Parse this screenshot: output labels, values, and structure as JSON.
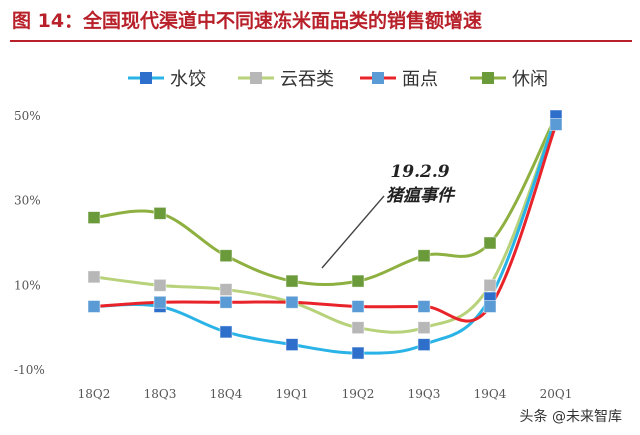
{
  "title": "图 14：全国现代渠道中不同速冻米面品类的销售额增速",
  "watermark": "头条 @未来智库",
  "annotation": {
    "line1": "19.2.9",
    "line2": "猪瘟事件"
  },
  "chart_data": {
    "type": "line",
    "categories": [
      "18Q2",
      "18Q3",
      "18Q4",
      "19Q1",
      "19Q2",
      "19Q3",
      "19Q4",
      "20Q1"
    ],
    "yticks": [
      {
        "value": 50,
        "label": "50%"
      },
      {
        "value": 30,
        "label": "30%"
      },
      {
        "value": 10,
        "label": "10%"
      },
      {
        "value": -10,
        "label": "-10%"
      }
    ],
    "ylim": [
      -10,
      50
    ],
    "legend_position": "top",
    "series": [
      {
        "name": "水饺",
        "line_color": "#2ab3e6",
        "marker_color": "#2e6fcc",
        "values": [
          5,
          5,
          -1,
          -4,
          -6,
          -4,
          7,
          50
        ]
      },
      {
        "name": "云吞类",
        "line_color": "#b7d27a",
        "marker_color": "#b7b7b7",
        "values": [
          12,
          10,
          9,
          6,
          0,
          0,
          10,
          50
        ]
      },
      {
        "name": "面点",
        "line_color": "#e8242a",
        "marker_color": "#5b9bd5",
        "values": [
          5,
          6,
          6,
          6,
          5,
          5,
          5,
          48
        ]
      },
      {
        "name": "休闲",
        "line_color": "#8db040",
        "marker_color": "#6a9a3a",
        "values": [
          26,
          27,
          17,
          11,
          11,
          17,
          20,
          50
        ]
      }
    ]
  }
}
